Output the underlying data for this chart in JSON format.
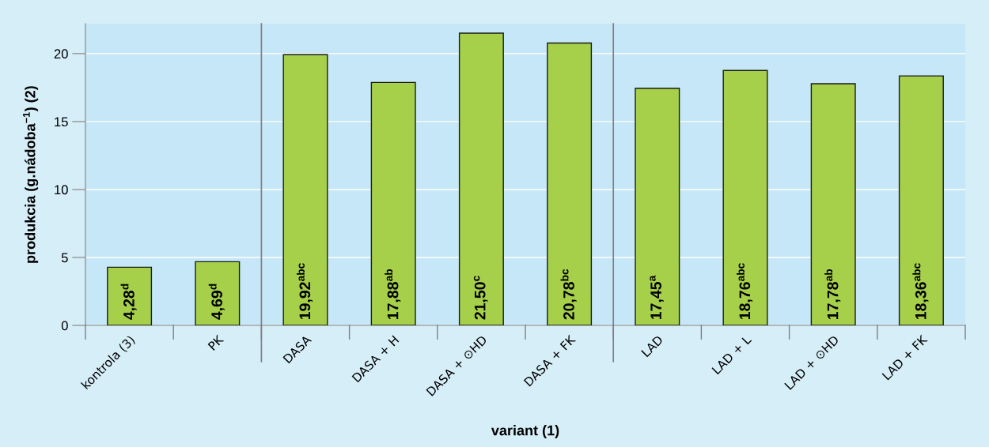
{
  "chart_data": {
    "type": "bar",
    "xlabel": "variant (1)",
    "ylabel": "produkcia (g.nádoba$^{−1}$) (2)",
    "categories": [
      "kontrola (3)",
      "PK",
      "DASA",
      "DASA + H",
      "DASA + ⊙HD",
      "DASA + FK",
      "LAD",
      "LAD + L",
      "LAD + ⊙HD",
      "LAD + FK"
    ],
    "values": [
      4.28,
      4.69,
      19.92,
      17.88,
      21.5,
      20.78,
      17.45,
      18.76,
      17.78,
      18.36
    ],
    "value_labels": [
      "4,28$^{d}$",
      "4,69$^{d}$",
      "19,92$^{abc}$",
      "17,88$^{ab}$",
      "21,50$^{c}$",
      "20,78$^{bc}$",
      "17,45$^{a}$",
      "18,76$^{abc}$",
      "17,78$^{ab}$",
      "18,36$^{abc}$"
    ],
    "color": "#a6d04a",
    "ylim": [
      0,
      22.2
    ],
    "yticks": [
      0,
      5,
      10,
      15,
      20
    ],
    "grid": "y"
  }
}
